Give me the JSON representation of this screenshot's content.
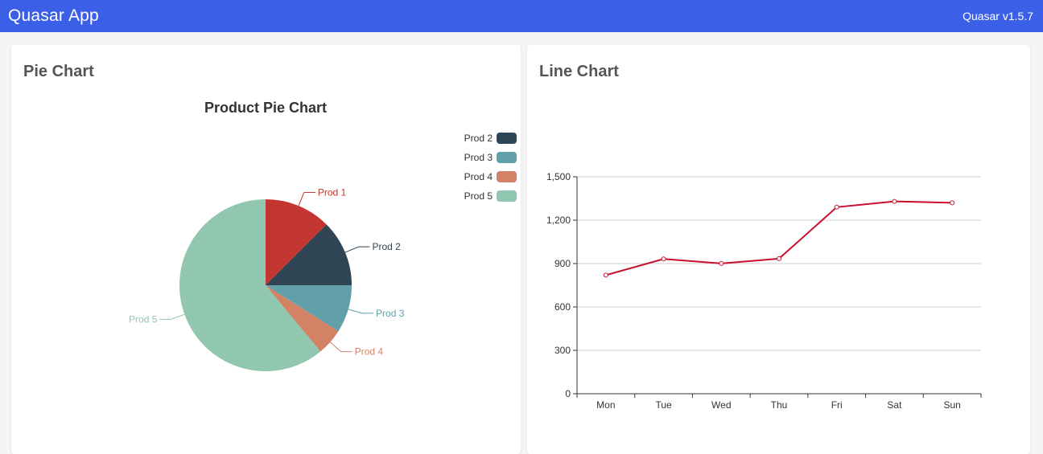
{
  "header": {
    "app_title": "Quasar App",
    "version": "Quasar v1.5.7"
  },
  "pie_card": {
    "title": "Pie Chart",
    "chart_data": {
      "type": "pie",
      "title": "Product Pie Chart",
      "slices": [
        {
          "name": "Prod 1",
          "value": 12.5,
          "color": "#c23531"
        },
        {
          "name": "Prod 2",
          "value": 12.5,
          "color": "#2f4554"
        },
        {
          "name": "Prod 3",
          "value": 9,
          "color": "#61a0a8"
        },
        {
          "name": "Prod 4",
          "value": 5,
          "color": "#d48265"
        },
        {
          "name": "Prod 5",
          "value": 61,
          "color": "#91c7ae"
        }
      ],
      "legend": [
        "Prod 2",
        "Prod 3",
        "Prod 4",
        "Prod 5"
      ],
      "legend_position": "top-right"
    }
  },
  "line_card": {
    "title": "Line Chart",
    "chart_data": {
      "type": "line",
      "x": [
        "Mon",
        "Tue",
        "Wed",
        "Thu",
        "Fri",
        "Sat",
        "Sun"
      ],
      "series": [
        {
          "values": [
            820,
            932,
            901,
            934,
            1290,
            1330,
            1320
          ],
          "color": "#c8102e"
        }
      ],
      "ylim": [
        0,
        1500
      ],
      "yticks": [
        0,
        300,
        600,
        900,
        1200,
        1500
      ],
      "ytick_labels": [
        "0",
        "300",
        "600",
        "900",
        "1,200",
        "1,500"
      ],
      "grid": true
    }
  }
}
